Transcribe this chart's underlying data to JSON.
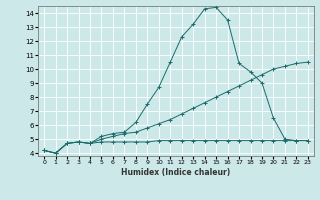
{
  "title": "",
  "xlabel": "Humidex (Indice chaleur)",
  "xlim": [
    -0.5,
    23.5
  ],
  "ylim": [
    3.8,
    14.5
  ],
  "yticks": [
    4,
    5,
    6,
    7,
    8,
    9,
    10,
    11,
    12,
    13,
    14
  ],
  "xticks": [
    0,
    1,
    2,
    3,
    4,
    5,
    6,
    7,
    8,
    9,
    10,
    11,
    12,
    13,
    14,
    15,
    16,
    17,
    18,
    19,
    20,
    21,
    22,
    23
  ],
  "bg_color": "#cde8e8",
  "line_color": "#1a6b6b",
  "grid_color": "#ffffff",
  "line1_x": [
    0,
    1,
    2,
    3,
    4,
    5,
    6,
    7,
    8,
    9,
    10,
    11,
    12,
    13,
    14,
    15,
    16,
    17,
    18,
    19,
    20,
    21,
    22,
    23
  ],
  "line1_y": [
    4.2,
    4.0,
    4.7,
    4.8,
    4.7,
    5.2,
    5.4,
    5.5,
    6.2,
    7.5,
    8.7,
    10.5,
    12.3,
    13.2,
    14.3,
    14.4,
    13.5,
    10.4,
    9.8,
    9.0,
    6.5,
    5.0,
    4.9,
    4.9
  ],
  "line2_x": [
    0,
    1,
    2,
    3,
    4,
    5,
    6,
    7,
    8,
    9,
    10,
    11,
    12,
    13,
    14,
    15,
    16,
    17,
    18,
    19,
    20,
    21,
    22,
    23
  ],
  "line2_y": [
    4.2,
    4.0,
    4.7,
    4.8,
    4.7,
    5.0,
    5.2,
    5.4,
    5.5,
    5.8,
    6.1,
    6.4,
    6.8,
    7.2,
    7.6,
    8.0,
    8.4,
    8.8,
    9.2,
    9.6,
    10.0,
    10.2,
    10.4,
    10.5
  ],
  "line3_x": [
    0,
    1,
    2,
    3,
    4,
    5,
    6,
    7,
    8,
    9,
    10,
    11,
    12,
    13,
    14,
    15,
    16,
    17,
    18,
    19,
    20,
    21,
    22,
    23
  ],
  "line3_y": [
    4.2,
    4.0,
    4.7,
    4.8,
    4.7,
    4.8,
    4.8,
    4.8,
    4.8,
    4.8,
    4.9,
    4.9,
    4.9,
    4.9,
    4.9,
    4.9,
    4.9,
    4.9,
    4.9,
    4.9,
    4.9,
    4.9,
    4.9,
    4.9
  ],
  "xlabel_fontsize": 5.5,
  "tick_fontsize": 4.5,
  "linewidth": 0.7,
  "markersize": 2.5,
  "markeredgewidth": 0.7
}
